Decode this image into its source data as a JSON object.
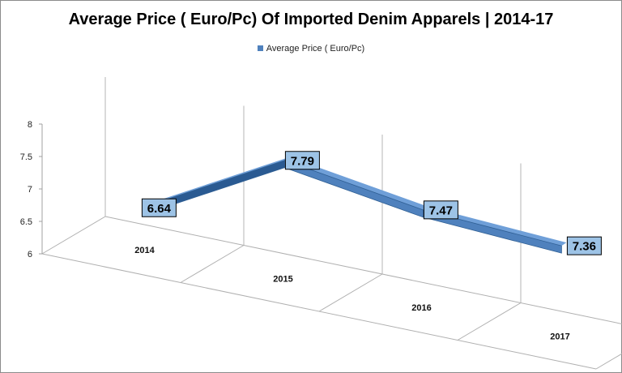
{
  "chart_data": {
    "type": "line",
    "title": "Average Price ( Euro/Pc) Of Imported Denim Apparels | 2014-17",
    "categories": [
      "2014",
      "2015",
      "2016",
      "2017"
    ],
    "series": [
      {
        "name": "Average Price ( Euro/Pc)",
        "values": [
          6.64,
          7.79,
          7.47,
          7.36
        ]
      }
    ],
    "data_labels": [
      "6.64",
      "7.79",
      "7.47",
      "7.36"
    ],
    "yticks": [
      "6",
      "6.5",
      "7",
      "7.5",
      "8"
    ],
    "ylim": [
      6,
      8
    ],
    "legend_position": "top",
    "grid": true,
    "colors": {
      "series": "#4f81bd",
      "series_dark": "#2f5f94",
      "label_bg": "#9dc3e6"
    }
  }
}
